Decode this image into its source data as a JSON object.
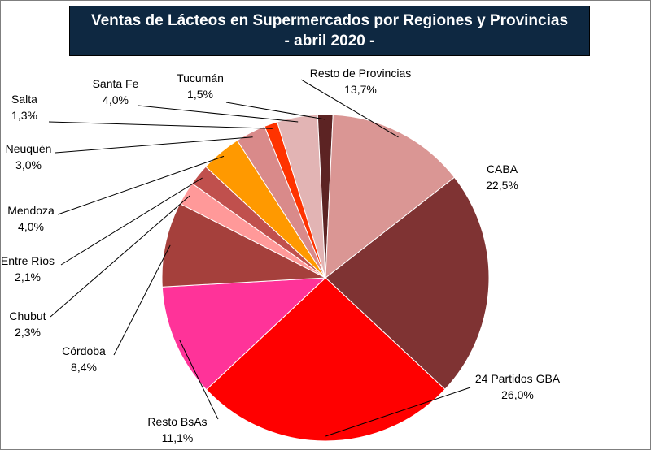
{
  "chart_data": {
    "type": "pie",
    "title": "Ventas de Lácteos en Supermercados por Regiones y Provincias",
    "subtitle": "- abril 2020 -",
    "slices": [
      {
        "label": "CABA",
        "value_label": "22,5%",
        "value": 22.5,
        "color": "#7f3333"
      },
      {
        "label": "24 Partidos GBA",
        "value_label": "26,0%",
        "value": 26.0,
        "color": "#ff0000"
      },
      {
        "label": "Resto BsAs",
        "value_label": "11,1%",
        "value": 11.1,
        "color": "#ff3399"
      },
      {
        "label": "Córdoba",
        "value_label": "8,4%",
        "value": 8.4,
        "color": "#a5403c"
      },
      {
        "label": "Chubut",
        "value_label": "2,3%",
        "value": 2.3,
        "color": "#ff9999"
      },
      {
        "label": "Entre Ríos",
        "value_label": "2,1%",
        "value": 2.1,
        "color": "#c0504d"
      },
      {
        "label": "Mendoza",
        "value_label": "4,0%",
        "value": 4.0,
        "color": "#ff9900"
      },
      {
        "label": "Neuquén",
        "value_label": "3,0%",
        "value": 3.0,
        "color": "#d98a8a"
      },
      {
        "label": "Salta",
        "value_label": "1,3%",
        "value": 1.3,
        "color": "#ff3300"
      },
      {
        "label": "Santa Fe",
        "value_label": "4,0%",
        "value": 4.0,
        "color": "#e2b4b4"
      },
      {
        "label": "Tucumán",
        "value_label": "1,5%",
        "value": 1.5,
        "color": "#5c2323"
      },
      {
        "label": "Resto de Provincias",
        "value_label": "13,7%",
        "value": 13.7,
        "color": "#da9694"
      }
    ]
  }
}
